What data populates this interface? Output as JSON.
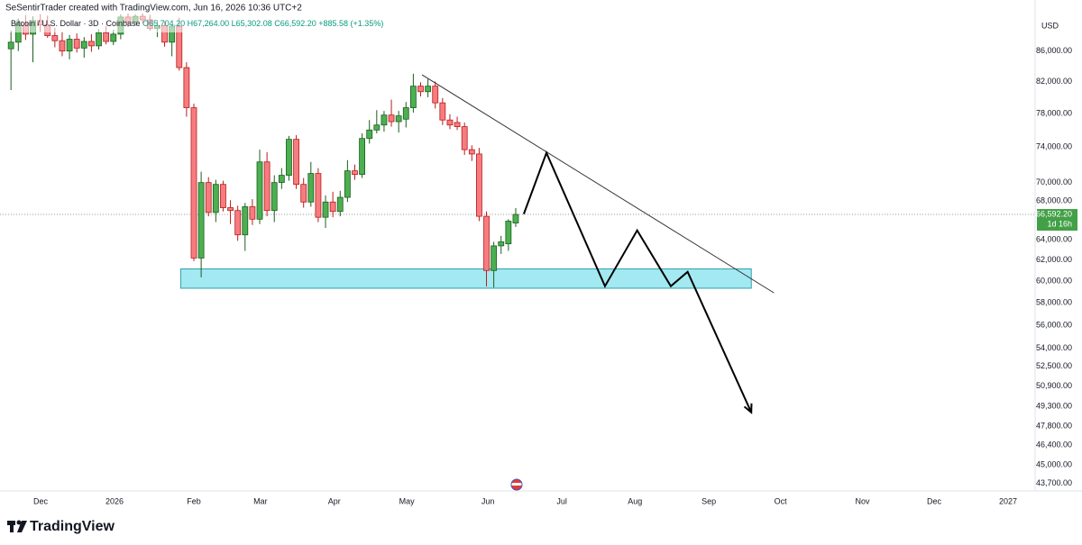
{
  "header": {
    "credit": "SeSentirTrader created with TradingView.com, Jun 16, 2026 10:36 UTC+2",
    "symbol": "Bitcoin / U.S. Dollar · 3D · Coinbase",
    "ohlc": "O65,704.20 H67,264.00 L65,302.08 C66,592.20",
    "change": "+885.58 (+1.35%)"
  },
  "footer": {
    "brand": "TradingView"
  },
  "chart_data": {
    "type": "candlestick",
    "currency": "USD",
    "log_scale": true,
    "grid": false,
    "up_color": "#4caf50",
    "down_color": "#f77c80",
    "xlim": [
      -1.5,
      140
    ],
    "ylim": [
      43200,
      91200
    ],
    "xticks": [
      {
        "value": 4.05,
        "label": "Dec"
      },
      {
        "value": 14.16,
        "label": "2026"
      },
      {
        "value": 25.0,
        "label": "Feb"
      },
      {
        "value": 34.1,
        "label": "Mar"
      },
      {
        "value": 44.2,
        "label": "Apr"
      },
      {
        "value": 54.1,
        "label": "May"
      },
      {
        "value": 65.2,
        "label": "Jun"
      },
      {
        "value": 75.3,
        "label": "Jul"
      },
      {
        "value": 85.3,
        "label": "Aug"
      },
      {
        "value": 95.4,
        "label": "Sep"
      },
      {
        "value": 105.2,
        "label": "Oct"
      },
      {
        "value": 116.4,
        "label": "Nov"
      },
      {
        "value": 126.2,
        "label": "Dec"
      },
      {
        "value": 136.3,
        "label": "2027"
      }
    ],
    "yticks": [
      {
        "value": 86000,
        "label": "86,000.00"
      },
      {
        "value": 82000,
        "label": "82,000.00"
      },
      {
        "value": 78000,
        "label": "78,000.00"
      },
      {
        "value": 74000,
        "label": "74,000.00"
      },
      {
        "value": 70000,
        "label": "70,000.00"
      },
      {
        "value": 68000,
        "label": "68,000.00"
      },
      {
        "value": 64000,
        "label": "64,000.00"
      },
      {
        "value": 62000,
        "label": "62,000.00"
      },
      {
        "value": 60000,
        "label": "60,000.00"
      },
      {
        "value": 58000,
        "label": "58,000.00"
      },
      {
        "value": 56000,
        "label": "56,000.00"
      },
      {
        "value": 54000,
        "label": "54,000.00"
      },
      {
        "value": 52500,
        "label": "52,500.00"
      },
      {
        "value": 50900,
        "label": "50,900.00"
      },
      {
        "value": 49300,
        "label": "49,300.00"
      },
      {
        "value": 47800,
        "label": "47,800.00"
      },
      {
        "value": 46400,
        "label": "46,400.00"
      },
      {
        "value": 45000,
        "label": "45,000.00"
      },
      {
        "value": 43700,
        "label": "43,700.00"
      }
    ],
    "open": [
      86300,
      87200,
      89800,
      88300,
      90200,
      89600,
      88100,
      87400,
      86000,
      87600,
      86400,
      87300,
      86700,
      88500,
      87300,
      88300,
      90700,
      90000,
      90800,
      90300,
      89100,
      89500,
      87200,
      89400,
      83800,
      78700,
      62200,
      70000,
      66800,
      69800,
      67300,
      67000,
      64500,
      67400,
      66100,
      72300,
      67000,
      70000,
      70800,
      74900,
      69800,
      67900,
      71000,
      66300,
      67900,
      66900,
      68400,
      71300,
      70900,
      75000,
      76000,
      76600,
      77800,
      77000,
      77300,
      78700,
      81400,
      80700,
      81400,
      79300,
      77200,
      76900,
      76400,
      73700,
      73200,
      66400,
      61000,
      63400,
      63600,
      65704.2
    ],
    "high": [
      88800,
      90500,
      91000,
      90800,
      91100,
      90900,
      89200,
      88600,
      88200,
      88400,
      87900,
      88300,
      89000,
      89400,
      88900,
      91100,
      91200,
      91100,
      91200,
      91000,
      90200,
      90100,
      89600,
      90600,
      84500,
      79200,
      71200,
      70600,
      70300,
      70200,
      68100,
      67500,
      67800,
      68200,
      73700,
      73400,
      70800,
      71600,
      75300,
      75400,
      70500,
      72300,
      71600,
      68600,
      69000,
      69100,
      72500,
      72000,
      75600,
      77200,
      78400,
      78300,
      79700,
      78300,
      79400,
      83000,
      81900,
      82300,
      82000,
      79900,
      77900,
      77600,
      76900,
      74200,
      73900,
      66900,
      63800,
      64400,
      66100,
      67264
    ],
    "low": [
      80900,
      86000,
      87500,
      84500,
      88600,
      87800,
      86500,
      85300,
      84900,
      85800,
      85100,
      85900,
      86200,
      86900,
      86800,
      87600,
      89300,
      89500,
      89800,
      88800,
      87900,
      86600,
      85300,
      83400,
      77600,
      61900,
      60350,
      66400,
      65800,
      66900,
      65600,
      63900,
      62900,
      65500,
      65600,
      66400,
      65800,
      69300,
      70200,
      69300,
      67300,
      67400,
      65800,
      65200,
      66300,
      66400,
      67900,
      70300,
      70500,
      74400,
      75600,
      75800,
      76400,
      75700,
      76300,
      78100,
      80100,
      80000,
      78600,
      76600,
      76100,
      76000,
      73100,
      72400,
      65900,
      59500,
      59400,
      62600,
      62900,
      65302.08
    ],
    "close": [
      87200,
      89800,
      88300,
      90200,
      89600,
      88100,
      87400,
      86000,
      87600,
      86400,
      87300,
      86700,
      88500,
      87300,
      88300,
      90700,
      90000,
      90800,
      90300,
      89100,
      89500,
      87200,
      89400,
      83800,
      78700,
      62200,
      70000,
      66800,
      69800,
      67300,
      67000,
      64500,
      67400,
      66100,
      72300,
      67000,
      70000,
      70800,
      74900,
      69800,
      67900,
      71000,
      66300,
      67900,
      66900,
      68400,
      71300,
      70900,
      75000,
      76000,
      76600,
      77800,
      77000,
      77700,
      78700,
      81400,
      80700,
      81400,
      79300,
      77200,
      76600,
      76400,
      73700,
      73200,
      66400,
      61000,
      63400,
      63800,
      65900,
      66592.2
    ],
    "last_price": {
      "value": 66592.2,
      "label": "66,592.20"
    },
    "countdown": "1d 16h",
    "zone": {
      "x": [
        23.2,
        101.2
      ],
      "y": [
        59330,
        61150
      ]
    },
    "trendline": {
      "x": [
        56.2,
        104.3
      ],
      "y": [
        82860,
        58900
      ]
    },
    "projection": {
      "x": [
        70.1,
        73.2,
        81.2,
        85.6,
        90.2,
        92.5,
        101.2
      ],
      "y": [
        66630,
        73330,
        59520,
        64950,
        59520,
        60870,
        48850
      ]
    }
  }
}
